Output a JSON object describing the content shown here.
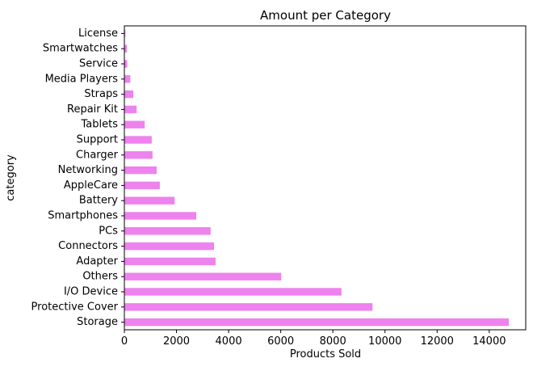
{
  "chart_data": {
    "type": "bar",
    "orientation": "horizontal",
    "title": "Amount per Category",
    "xlabel": "Products Sold",
    "ylabel": "category",
    "xlim": [
      0,
      15400
    ],
    "xticks": [
      0,
      2000,
      4000,
      6000,
      8000,
      10000,
      12000,
      14000
    ],
    "grid": false,
    "legend": "none",
    "bar_color": "#ee82ee",
    "categories": [
      "Storage",
      "Protective Cover",
      "I/O Device",
      "Others",
      "Adapter",
      "Connectors",
      "PCs",
      "Smartphones",
      "Battery",
      "AppleCare",
      "Networking",
      "Charger",
      "Support",
      "Tablets",
      "Repair Kit",
      "Straps",
      "Media Players",
      "Service",
      "Smartwatches",
      "License"
    ],
    "values": [
      14750,
      9520,
      8330,
      6020,
      3500,
      3440,
      3310,
      2760,
      1930,
      1360,
      1240,
      1080,
      1050,
      780,
      470,
      340,
      230,
      110,
      100,
      40
    ]
  }
}
